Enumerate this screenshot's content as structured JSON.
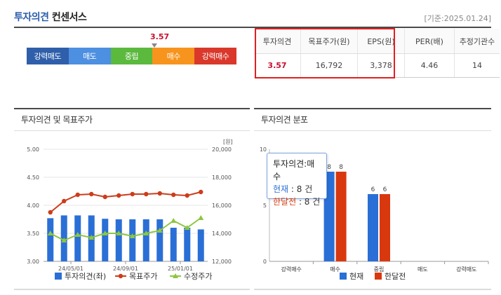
{
  "header": {
    "title_highlight": "투자의견",
    "title_rest": " 컨센서스",
    "base_date": "[기준:2025.01.24]"
  },
  "gauge": {
    "current_label": "3.57",
    "segments": [
      {
        "label": "강력매도",
        "color": "#2f5faa"
      },
      {
        "label": "매도",
        "color": "#4d8fe0"
      },
      {
        "label": "중립",
        "color": "#5bb93e"
      },
      {
        "label": "매수",
        "color": "#f7941d"
      },
      {
        "label": "강력매수",
        "color": "#d9382b"
      }
    ]
  },
  "consensus_table": {
    "headers": [
      "투자의견",
      "목표주가(원)",
      "EPS(원)",
      "PER(배)",
      "추정기관수"
    ],
    "values": [
      "3.57",
      "16,792",
      "3,378",
      "4.46",
      "14"
    ]
  },
  "panel_left": {
    "title": "투자의견 및 목표주가"
  },
  "panel_right": {
    "title": "투자의견 분포"
  },
  "chart_data": [
    {
      "type": "bar+line",
      "title": "투자의견 및 목표주가",
      "x_ticks": [
        "24/05/01",
        "24/09/01",
        "25/01/01"
      ],
      "y_left": {
        "ticks": [
          "5.00",
          "4.50",
          "4.00",
          "3.50",
          "3.00"
        ],
        "range": [
          3.0,
          5.0
        ]
      },
      "y_right": {
        "unit": "[원]",
        "ticks": [
          "20,000",
          "18,000",
          "16,000",
          "14,000",
          "12,000"
        ],
        "range": [
          12000,
          20000
        ]
      },
      "series": [
        {
          "name": "투자의견(좌)",
          "type": "bar",
          "color": "#2a6fd6",
          "values": [
            3.77,
            3.82,
            3.82,
            3.82,
            3.76,
            3.75,
            3.75,
            3.75,
            3.75,
            3.6,
            3.6,
            3.57
          ]
        },
        {
          "name": "목표주가",
          "type": "line",
          "color": "#cc3d1c",
          "values": [
            15500,
            16300,
            16750,
            16800,
            16600,
            16700,
            16800,
            16800,
            16850,
            16750,
            16700,
            16950
          ]
        },
        {
          "name": "수정주가",
          "type": "line",
          "color": "#8dc63f",
          "values": [
            14000,
            13500,
            13900,
            13700,
            14000,
            14000,
            13800,
            14000,
            14200,
            14900,
            14400,
            15100
          ]
        }
      ],
      "legend": [
        "투자의견(좌)",
        "목표주가",
        "수정주가"
      ]
    },
    {
      "type": "bar",
      "title": "투자의견 분포",
      "categories": [
        "강력매수",
        "매수",
        "중립",
        "매도",
        "강력매도"
      ],
      "y_ticks": [
        "10",
        "5",
        "0"
      ],
      "ylim": [
        0,
        10
      ],
      "series": [
        {
          "name": "현재",
          "color": "#2a6fd6",
          "values": [
            0,
            8,
            6,
            0,
            0
          ]
        },
        {
          "name": "한달전",
          "color": "#d9380f",
          "values": [
            0,
            8,
            6,
            0,
            0
          ]
        }
      ],
      "data_labels": [
        "8",
        "8",
        "6",
        "6"
      ],
      "tooltip": {
        "title": "투자의견:매수",
        "row1_label": "현재",
        "row1_value": ": 8 건",
        "row2_label": "한달전",
        "row2_value": ": 8 건"
      }
    }
  ]
}
